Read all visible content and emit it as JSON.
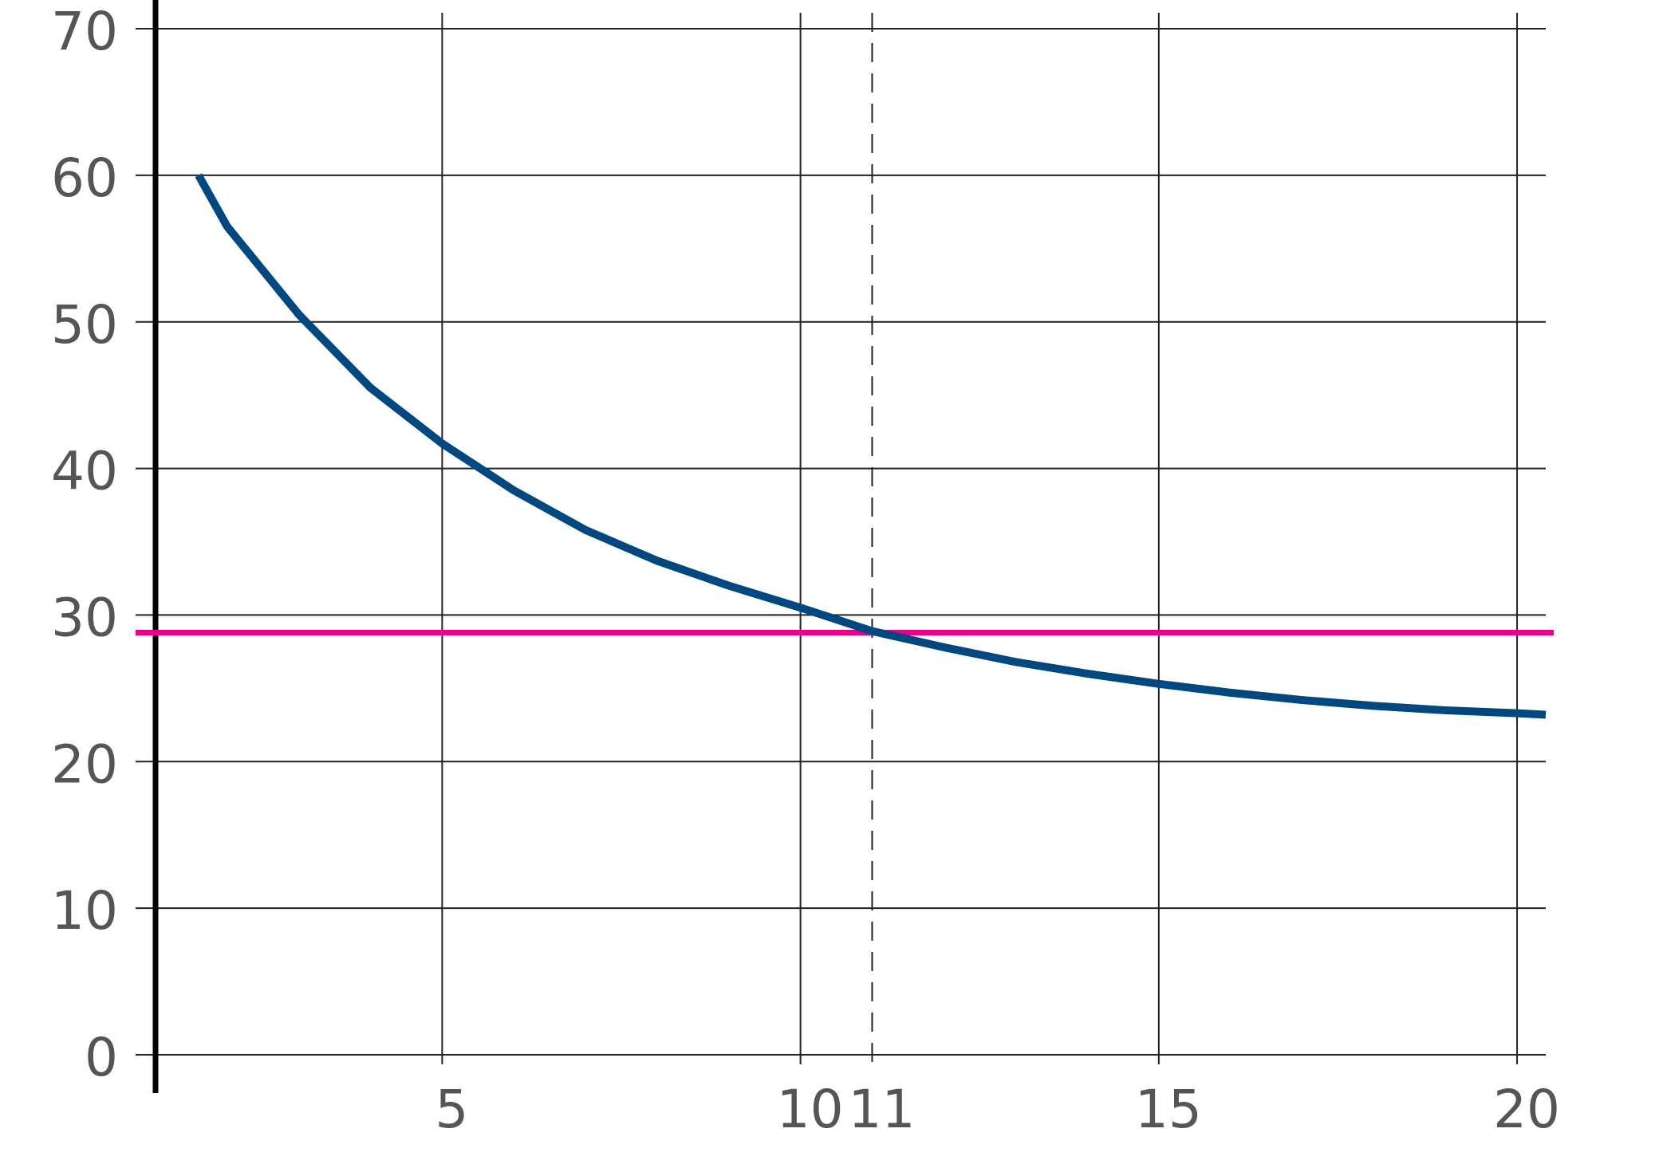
{
  "chart_data": {
    "type": "line",
    "x": [
      1.6,
      2,
      3,
      4,
      5,
      6,
      7,
      8,
      9,
      10,
      11,
      12,
      13,
      14,
      15,
      16,
      17,
      18,
      19,
      20,
      20.4
    ],
    "series": [
      {
        "color": "#00487f",
        "values": [
          60,
          56.5,
          50.5,
          45.5,
          41.7,
          38.5,
          35.8,
          33.7,
          32,
          30.5,
          28.9,
          27.8,
          26.8,
          26,
          25.3,
          24.7,
          24.2,
          23.8,
          23.5,
          23.3,
          23.2
        ]
      }
    ],
    "reference_y": 28.8,
    "reference_y_color": "#e6008c",
    "reference_x": 11,
    "xlim": [
      1,
      20.4
    ],
    "xticks": [
      5,
      10,
      11,
      15,
      20
    ],
    "ylim": [
      0,
      70
    ],
    "yticks": [
      0,
      10,
      20,
      30,
      40,
      50,
      60,
      70
    ],
    "grid": true
  }
}
